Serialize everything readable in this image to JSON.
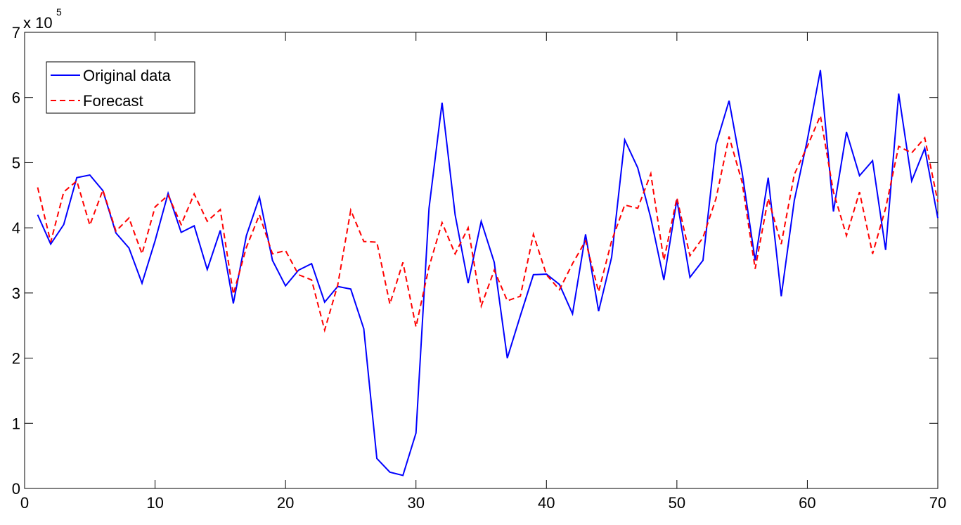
{
  "chart_data": {
    "type": "line",
    "y_multiplier": {
      "base": "x 10",
      "exponent": "5"
    },
    "x": [
      1,
      2,
      3,
      4,
      5,
      6,
      7,
      8,
      9,
      10,
      11,
      12,
      13,
      14,
      15,
      16,
      17,
      18,
      19,
      20,
      21,
      22,
      23,
      24,
      25,
      26,
      27,
      28,
      29,
      30,
      31,
      32,
      33,
      34,
      35,
      36,
      37,
      38,
      39,
      40,
      41,
      42,
      43,
      44,
      45,
      46,
      47,
      48,
      49,
      50,
      51,
      52,
      53,
      54,
      55,
      56,
      57,
      58,
      59,
      60,
      61,
      62,
      63,
      64,
      65,
      66,
      67,
      68,
      69,
      70
    ],
    "series": [
      {
        "name": "Original data",
        "color": "#0000ff",
        "dash": "solid",
        "values": [
          4.2,
          3.75,
          4.05,
          4.77,
          4.81,
          4.57,
          3.92,
          3.69,
          3.15,
          3.8,
          4.53,
          3.93,
          4.03,
          3.36,
          3.96,
          2.84,
          3.88,
          4.47,
          3.5,
          3.11,
          3.35,
          3.45,
          2.86,
          3.1,
          3.06,
          2.45,
          0.46,
          0.25,
          0.2,
          0.85,
          4.3,
          5.92,
          4.2,
          3.15,
          4.1,
          3.47,
          2.0,
          2.65,
          3.28,
          3.29,
          3.13,
          2.68,
          3.9,
          2.72,
          3.55,
          5.35,
          4.92,
          4.15,
          3.2,
          4.43,
          3.24,
          3.5,
          5.28,
          5.95,
          4.85,
          3.5,
          4.77,
          2.95,
          4.42,
          5.35,
          6.42,
          4.25,
          5.47,
          4.8,
          5.03,
          3.66,
          6.06,
          4.72,
          5.22,
          4.15
        ]
      },
      {
        "name": "Forecast",
        "color": "#ff0000",
        "dash": "dashed",
        "values": [
          4.62,
          3.78,
          4.55,
          4.72,
          4.04,
          4.58,
          3.95,
          4.15,
          3.6,
          4.32,
          4.5,
          4.05,
          4.52,
          4.1,
          4.28,
          2.98,
          3.7,
          4.2,
          3.6,
          3.65,
          3.28,
          3.2,
          2.43,
          3.12,
          4.27,
          3.79,
          3.78,
          2.83,
          3.47,
          2.48,
          3.4,
          4.08,
          3.6,
          4.0,
          2.8,
          3.35,
          2.88,
          2.95,
          3.9,
          3.28,
          3.05,
          3.45,
          3.8,
          3.02,
          3.8,
          4.35,
          4.3,
          4.83,
          3.5,
          4.46,
          3.57,
          3.85,
          4.45,
          5.4,
          4.7,
          3.37,
          4.45,
          3.75,
          4.82,
          5.25,
          5.72,
          4.55,
          3.88,
          4.55,
          3.6,
          4.3,
          5.25,
          5.15,
          5.38,
          4.4
        ]
      }
    ],
    "xlim": [
      0,
      70
    ],
    "xticks": [
      0,
      10,
      20,
      30,
      40,
      50,
      60,
      70
    ],
    "ylim": [
      0,
      7
    ],
    "yticks": [
      0,
      1,
      2,
      3,
      4,
      5,
      6,
      7
    ],
    "grid": false,
    "legend": "upper-left"
  }
}
